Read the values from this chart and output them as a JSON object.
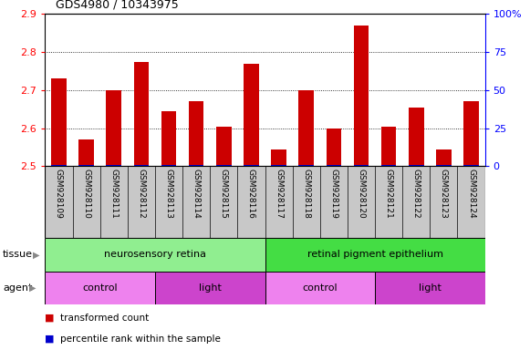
{
  "title": "GDS4980 / 10343975",
  "categories": [
    "GSM928109",
    "GSM928110",
    "GSM928111",
    "GSM928112",
    "GSM928113",
    "GSM928114",
    "GSM928115",
    "GSM928116",
    "GSM928117",
    "GSM928118",
    "GSM928119",
    "GSM928120",
    "GSM928121",
    "GSM928122",
    "GSM928123",
    "GSM928124"
  ],
  "red_values": [
    2.73,
    2.57,
    2.7,
    2.775,
    2.645,
    2.67,
    2.605,
    2.77,
    2.545,
    2.7,
    2.6,
    2.87,
    2.605,
    2.655,
    2.545,
    2.67
  ],
  "y_min": 2.5,
  "y_max": 2.9,
  "y_ticks_left": [
    2.5,
    2.6,
    2.7,
    2.8,
    2.9
  ],
  "y_ticks_right": [
    0,
    25,
    50,
    75,
    100
  ],
  "right_tick_labels": [
    "0",
    "25",
    "50",
    "75",
    "100%"
  ],
  "tissue_groups": [
    {
      "label": "neurosensory retina",
      "start": 0,
      "end": 7,
      "color": "#90ee90"
    },
    {
      "label": "retinal pigment epithelium",
      "start": 8,
      "end": 15,
      "color": "#44dd44"
    }
  ],
  "agent_groups": [
    {
      "label": "control",
      "start": 0,
      "end": 3,
      "color": "#ee82ee"
    },
    {
      "label": "light",
      "start": 4,
      "end": 7,
      "color": "#cc44cc"
    },
    {
      "label": "control",
      "start": 8,
      "end": 11,
      "color": "#ee82ee"
    },
    {
      "label": "light",
      "start": 12,
      "end": 15,
      "color": "#cc44cc"
    }
  ],
  "bar_color_red": "#cc0000",
  "bar_color_blue": "#0000cc",
  "label_row1": "tissue",
  "label_row2": "agent",
  "legend_red": "transformed count",
  "legend_blue": "percentile rank within the sample",
  "bar_width": 0.55,
  "xtick_bg": "#c8c8c8",
  "spine_color": "#000000"
}
